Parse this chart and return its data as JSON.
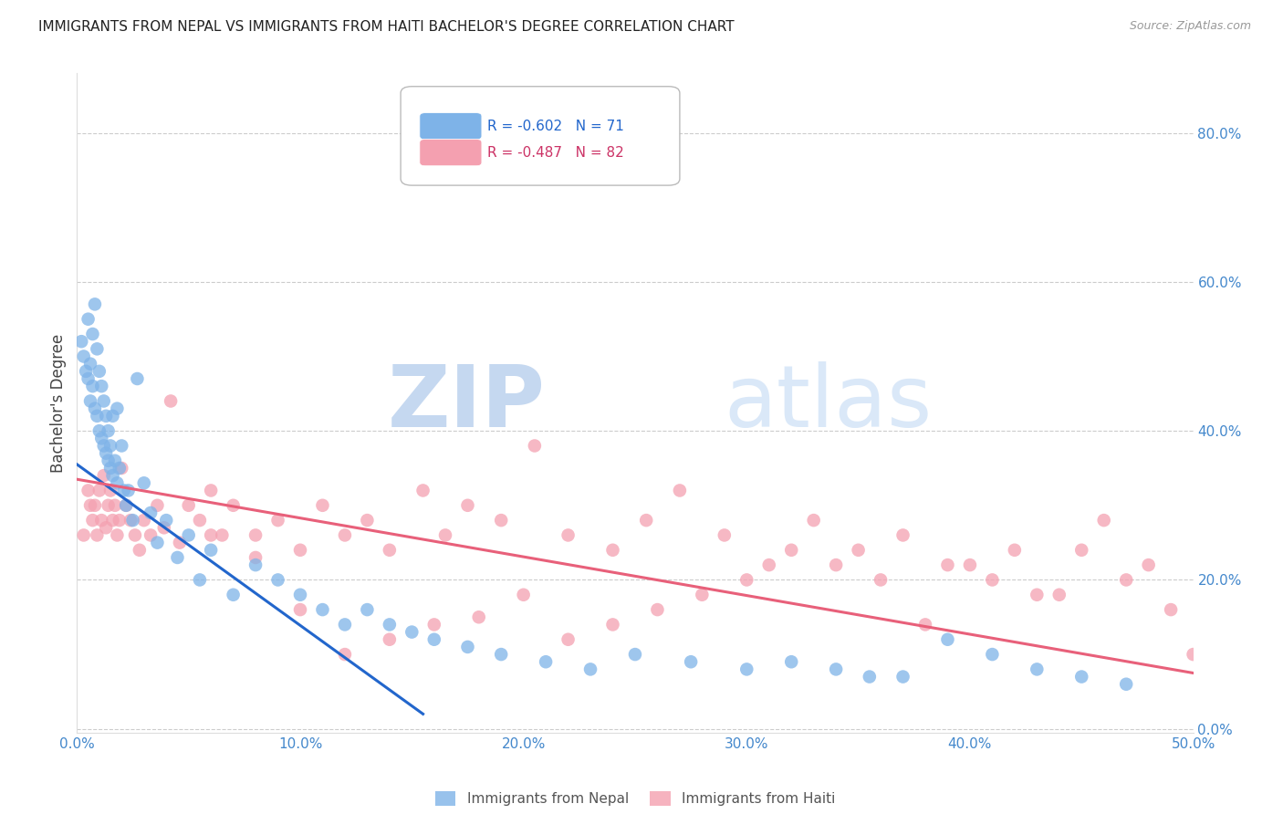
{
  "title": "IMMIGRANTS FROM NEPAL VS IMMIGRANTS FROM HAITI BACHELOR'S DEGREE CORRELATION CHART",
  "source": "Source: ZipAtlas.com",
  "ylabel": "Bachelor's Degree",
  "right_ytick_labels": [
    "0.0%",
    "20.0%",
    "40.0%",
    "60.0%",
    "80.0%"
  ],
  "right_ytick_values": [
    0.0,
    0.2,
    0.4,
    0.6,
    0.8
  ],
  "xlim": [
    0.0,
    0.5
  ],
  "ylim": [
    -0.005,
    0.88
  ],
  "xtick_labels": [
    "0.0%",
    "10.0%",
    "20.0%",
    "30.0%",
    "40.0%",
    "50.0%"
  ],
  "xtick_values": [
    0.0,
    0.1,
    0.2,
    0.3,
    0.4,
    0.5
  ],
  "nepal_R": -0.602,
  "nepal_N": 71,
  "haiti_R": -0.487,
  "haiti_N": 82,
  "nepal_color": "#7eb3e8",
  "haiti_color": "#f4a0b0",
  "nepal_line_color": "#2266cc",
  "haiti_line_color": "#e8607a",
  "background_color": "#ffffff",
  "title_fontsize": 11,
  "nepal_line_x": [
    0.0,
    0.155
  ],
  "nepal_line_y": [
    0.355,
    0.02
  ],
  "haiti_line_x": [
    0.0,
    0.5
  ],
  "haiti_line_y": [
    0.335,
    0.075
  ],
  "nepal_x": [
    0.002,
    0.003,
    0.004,
    0.005,
    0.005,
    0.006,
    0.006,
    0.007,
    0.007,
    0.008,
    0.008,
    0.009,
    0.009,
    0.01,
    0.01,
    0.011,
    0.011,
    0.012,
    0.012,
    0.013,
    0.013,
    0.014,
    0.014,
    0.015,
    0.015,
    0.016,
    0.016,
    0.017,
    0.018,
    0.018,
    0.019,
    0.02,
    0.021,
    0.022,
    0.023,
    0.025,
    0.027,
    0.03,
    0.033,
    0.036,
    0.04,
    0.045,
    0.05,
    0.055,
    0.06,
    0.07,
    0.08,
    0.09,
    0.1,
    0.11,
    0.12,
    0.13,
    0.14,
    0.15,
    0.16,
    0.175,
    0.19,
    0.21,
    0.23,
    0.25,
    0.275,
    0.3,
    0.32,
    0.34,
    0.355,
    0.37,
    0.39,
    0.41,
    0.43,
    0.45,
    0.47
  ],
  "nepal_y": [
    0.52,
    0.5,
    0.48,
    0.55,
    0.47,
    0.49,
    0.44,
    0.53,
    0.46,
    0.57,
    0.43,
    0.51,
    0.42,
    0.48,
    0.4,
    0.46,
    0.39,
    0.44,
    0.38,
    0.42,
    0.37,
    0.4,
    0.36,
    0.38,
    0.35,
    0.42,
    0.34,
    0.36,
    0.43,
    0.33,
    0.35,
    0.38,
    0.32,
    0.3,
    0.32,
    0.28,
    0.47,
    0.33,
    0.29,
    0.25,
    0.28,
    0.23,
    0.26,
    0.2,
    0.24,
    0.18,
    0.22,
    0.2,
    0.18,
    0.16,
    0.14,
    0.16,
    0.14,
    0.13,
    0.12,
    0.11,
    0.1,
    0.09,
    0.08,
    0.1,
    0.09,
    0.08,
    0.09,
    0.08,
    0.07,
    0.07,
    0.12,
    0.1,
    0.08,
    0.07,
    0.06
  ],
  "haiti_x": [
    0.003,
    0.005,
    0.006,
    0.007,
    0.008,
    0.009,
    0.01,
    0.011,
    0.012,
    0.013,
    0.014,
    0.015,
    0.016,
    0.017,
    0.018,
    0.019,
    0.02,
    0.022,
    0.024,
    0.026,
    0.028,
    0.03,
    0.033,
    0.036,
    0.039,
    0.042,
    0.046,
    0.05,
    0.055,
    0.06,
    0.065,
    0.07,
    0.08,
    0.09,
    0.1,
    0.11,
    0.12,
    0.13,
    0.14,
    0.155,
    0.165,
    0.175,
    0.19,
    0.205,
    0.22,
    0.24,
    0.255,
    0.27,
    0.29,
    0.31,
    0.33,
    0.35,
    0.37,
    0.39,
    0.41,
    0.43,
    0.45,
    0.47,
    0.49,
    0.5,
    0.48,
    0.46,
    0.44,
    0.42,
    0.4,
    0.38,
    0.36,
    0.34,
    0.32,
    0.3,
    0.28,
    0.26,
    0.24,
    0.22,
    0.2,
    0.18,
    0.16,
    0.14,
    0.12,
    0.1,
    0.08,
    0.06
  ],
  "haiti_y": [
    0.26,
    0.32,
    0.3,
    0.28,
    0.3,
    0.26,
    0.32,
    0.28,
    0.34,
    0.27,
    0.3,
    0.32,
    0.28,
    0.3,
    0.26,
    0.28,
    0.35,
    0.3,
    0.28,
    0.26,
    0.24,
    0.28,
    0.26,
    0.3,
    0.27,
    0.44,
    0.25,
    0.3,
    0.28,
    0.32,
    0.26,
    0.3,
    0.26,
    0.28,
    0.24,
    0.3,
    0.26,
    0.28,
    0.24,
    0.32,
    0.26,
    0.3,
    0.28,
    0.38,
    0.26,
    0.24,
    0.28,
    0.32,
    0.26,
    0.22,
    0.28,
    0.24,
    0.26,
    0.22,
    0.2,
    0.18,
    0.24,
    0.2,
    0.16,
    0.1,
    0.22,
    0.28,
    0.18,
    0.24,
    0.22,
    0.14,
    0.2,
    0.22,
    0.24,
    0.2,
    0.18,
    0.16,
    0.14,
    0.12,
    0.18,
    0.15,
    0.14,
    0.12,
    0.1,
    0.16,
    0.23,
    0.26
  ]
}
